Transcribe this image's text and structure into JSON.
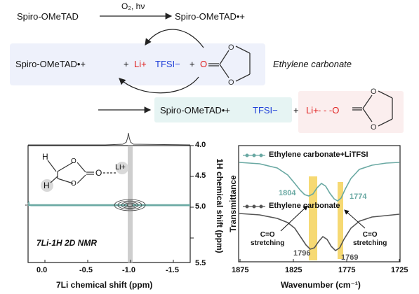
{
  "scheme": {
    "row1": {
      "reactant": "Spiro-OMeTAD",
      "conditions": "O₂, hν",
      "product": "Spiro-OMeTAD•+"
    },
    "row2": {
      "spiro": "Spiro-OMeTAD•+",
      "plus1": "+",
      "li": "Li+",
      "tfsi": "TFSI−",
      "plus2": "+",
      "solvent_name": "Ethylene carbonate"
    },
    "row3": {
      "spiro_tfsi_spiro": "Spiro-OMeTAD•+",
      "spiro_tfsi_tfsi": "TFSI−",
      "plus": "+",
      "li": "Li+",
      "bond": "- - -O"
    }
  },
  "nmr": {
    "label": "7Li-1H 2D NMR",
    "xlabel": "7Li chemical shift (ppm)",
    "ylabel": "1H chemical shift (ppm)",
    "x_ticks": [
      "0.0",
      "-0.5",
      "-1.0",
      "-1.5"
    ],
    "y_ticks": [
      "4.0",
      "4.5",
      "5.0",
      "5.5"
    ],
    "inset_atoms": {
      "h1": "H",
      "h2": "H",
      "o": "O",
      "li": "Li+"
    }
  },
  "ir": {
    "xlabel": "Wavenumber (cm⁻¹)",
    "ylabel": "Transmittance",
    "x_ticks": [
      "1875",
      "1825",
      "1775",
      "1725"
    ],
    "legend_top": "Ethylene carbonate+LiTFSI",
    "legend_bottom": "Ethylene carbonate",
    "peaks_top": [
      "1804",
      "1774"
    ],
    "peaks_bottom": [
      "1796",
      "1769"
    ],
    "annotation_left": "C=O\nstretching",
    "annotation_right": "C=O\nstretching",
    "colors": {
      "top": "#6aa9a3",
      "bottom": "#555555",
      "highlight": "#f4d25a"
    }
  }
}
